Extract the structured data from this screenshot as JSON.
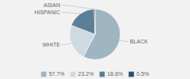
{
  "chart_data": {
    "type": "pie",
    "categories": [
      "BLACK",
      "WHITE",
      "HISPANIC",
      "ASIAN"
    ],
    "values": [
      57.7,
      23.2,
      18.6,
      0.5
    ],
    "value_labels": [
      "57.7%",
      "23.2%",
      "18.6%",
      "0.5%"
    ],
    "colors": [
      "#a0b5c2",
      "#cddae2",
      "#5b7f96",
      "#2e5068"
    ],
    "legend": "bottom"
  }
}
